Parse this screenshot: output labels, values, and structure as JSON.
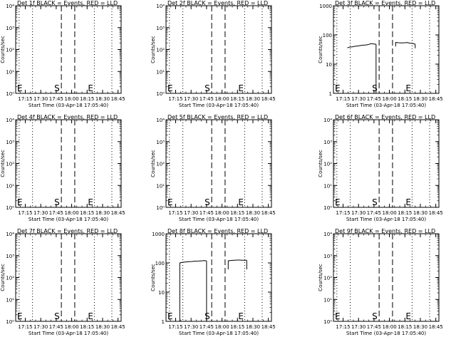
{
  "xtick_labels": [
    "17:15",
    "17:30",
    "17:45",
    "18:00",
    "18:15",
    "18:30",
    "18:45"
  ],
  "xlabel": "Start Time (03-Apr-18 17:05:40)",
  "ylabel": "Counts/sec",
  "markers": {
    "start": "S",
    "end": "E"
  },
  "chart_data": [
    {
      "type": "line",
      "title": "Det 1f BLACK = Events, RED = LLD",
      "yscale": "log",
      "ylim": [
        1,
        10000
      ],
      "ytick_labels": [
        "10⁰",
        "10¹",
        "10²",
        "10³",
        "10⁴"
      ],
      "xlim": [
        "17:05:40",
        "18:48:00"
      ],
      "vlines_dotted": [
        "17:09",
        "17:22",
        "18:22",
        "18:39"
      ],
      "vlines_dashed": [
        "17:50",
        "18:03"
      ],
      "series": []
    },
    {
      "type": "line",
      "title": "Det 2f BLACK = Events, RED = LLD",
      "yscale": "log",
      "ylim": [
        1,
        10000
      ],
      "ytick_labels": [
        "10⁰",
        "10¹",
        "10²",
        "10³",
        "10⁴"
      ],
      "xlim": [
        "17:05:40",
        "18:48:00"
      ],
      "vlines_dotted": [
        "17:09",
        "17:22",
        "18:22",
        "18:39"
      ],
      "vlines_dashed": [
        "17:50",
        "18:03"
      ],
      "series": []
    },
    {
      "type": "line",
      "title": "Det 3f BLACK = Events, RED = LLD",
      "yscale": "log",
      "ylim": [
        1,
        1000
      ],
      "ytick_labels": [
        "1",
        "10",
        "100",
        "1000"
      ],
      "xlim": [
        "17:05:40",
        "18:48:00"
      ],
      "vlines_dotted": [
        "17:09",
        "17:22",
        "18:22",
        "18:39"
      ],
      "vlines_dashed": [
        "17:50",
        "18:03"
      ],
      "series": [
        {
          "x": [
            "17:19",
            "17:21",
            "17:24",
            "17:27",
            "17:30",
            "17:33",
            "17:36",
            "17:39",
            "17:42",
            "17:45",
            "17:47"
          ],
          "y": [
            36,
            38,
            39,
            41,
            42,
            44,
            45,
            46,
            50,
            49,
            48
          ]
        },
        {
          "x": [
            "17:47",
            "17:47"
          ],
          "y": [
            48,
            1
          ]
        },
        {
          "x": [
            "18:06",
            "18:06",
            "18:09",
            "18:12",
            "18:15",
            "18:17",
            "18:20",
            "18:23",
            "18:25"
          ],
          "y": [
            40,
            55,
            54,
            53,
            54,
            55,
            52,
            51,
            48
          ]
        },
        {
          "x": [
            "18:25",
            "18:25"
          ],
          "y": [
            48,
            35
          ]
        }
      ]
    },
    {
      "type": "line",
      "title": "Det 4f BLACK = Events, RED = LLD",
      "yscale": "log",
      "ylim": [
        1,
        10000
      ],
      "ytick_labels": [
        "10⁰",
        "10¹",
        "10²",
        "10³",
        "10⁴"
      ],
      "xlim": [
        "17:05:40",
        "18:48:00"
      ],
      "vlines_dotted": [
        "17:09",
        "17:22",
        "18:22",
        "18:39"
      ],
      "vlines_dashed": [
        "17:50",
        "18:03"
      ],
      "series": []
    },
    {
      "type": "line",
      "title": "Det 5f BLACK = Events, RED = LLD",
      "yscale": "log",
      "ylim": [
        1,
        10000
      ],
      "ytick_labels": [
        "10⁰",
        "10¹",
        "10²",
        "10³",
        "10⁴"
      ],
      "xlim": [
        "17:05:40",
        "18:48:00"
      ],
      "vlines_dotted": [
        "17:09",
        "17:22",
        "18:22",
        "18:39"
      ],
      "vlines_dashed": [
        "17:50",
        "18:03"
      ],
      "series": []
    },
    {
      "type": "line",
      "title": "Det 6f BLACK = Events, RED = LLD",
      "yscale": "log",
      "ylim": [
        1,
        10000
      ],
      "ytick_labels": [
        "10⁰",
        "10¹",
        "10²",
        "10³",
        "10⁴"
      ],
      "xlim": [
        "17:05:40",
        "18:48:00"
      ],
      "vlines_dotted": [
        "17:09",
        "17:22",
        "18:22",
        "18:39"
      ],
      "vlines_dashed": [
        "17:50",
        "18:03"
      ],
      "series": []
    },
    {
      "type": "line",
      "title": "Det 7f BLACK = Events, RED = LLD",
      "yscale": "log",
      "ylim": [
        1,
        10000
      ],
      "ytick_labels": [
        "10⁰",
        "10¹",
        "10²",
        "10³",
        "10⁴"
      ],
      "xlim": [
        "17:05:40",
        "18:48:00"
      ],
      "vlines_dotted": [
        "17:09",
        "17:22",
        "18:22",
        "18:39"
      ],
      "vlines_dashed": [
        "17:50",
        "18:03"
      ],
      "series": []
    },
    {
      "type": "line",
      "title": "Det 8f BLACK = Events, RED = LLD",
      "yscale": "log",
      "ylim": [
        1,
        1000
      ],
      "ytick_labels": [
        "1",
        "10",
        "100",
        "1000"
      ],
      "xlim": [
        "17:05:40",
        "18:48:00"
      ],
      "vlines_dotted": [
        "17:09",
        "17:22",
        "18:22",
        "18:39"
      ],
      "vlines_dashed": [
        "17:50",
        "18:03"
      ],
      "series": [
        {
          "x": [
            "17:19",
            "17:19",
            "17:22",
            "17:25",
            "17:28",
            "17:31",
            "17:34",
            "17:37",
            "17:40",
            "17:43",
            "17:45"
          ],
          "y": [
            1,
            100,
            105,
            108,
            110,
            112,
            115,
            116,
            118,
            120,
            118
          ]
        },
        {
          "x": [
            "17:45",
            "17:45"
          ],
          "y": [
            118,
            1
          ]
        },
        {
          "x": [
            "18:06",
            "18:06",
            "18:09",
            "18:12",
            "18:15",
            "18:17",
            "18:20",
            "18:22",
            "18:24"
          ],
          "y": [
            60,
            118,
            122,
            124,
            125,
            125,
            124,
            124,
            123
          ]
        },
        {
          "x": [
            "18:24",
            "18:24"
          ],
          "y": [
            123,
            60
          ]
        }
      ]
    },
    {
      "type": "line",
      "title": "Det 9f BLACK = Events, RED = LLD",
      "yscale": "log",
      "ylim": [
        1,
        10000
      ],
      "ytick_labels": [
        "10⁰",
        "10¹",
        "10²",
        "10³",
        "10⁴"
      ],
      "xlim": [
        "17:05:40",
        "18:48:00"
      ],
      "vlines_dotted": [
        "17:09",
        "17:22",
        "18:22",
        "18:39"
      ],
      "vlines_dashed": [
        "17:50",
        "18:03"
      ],
      "series": []
    }
  ]
}
